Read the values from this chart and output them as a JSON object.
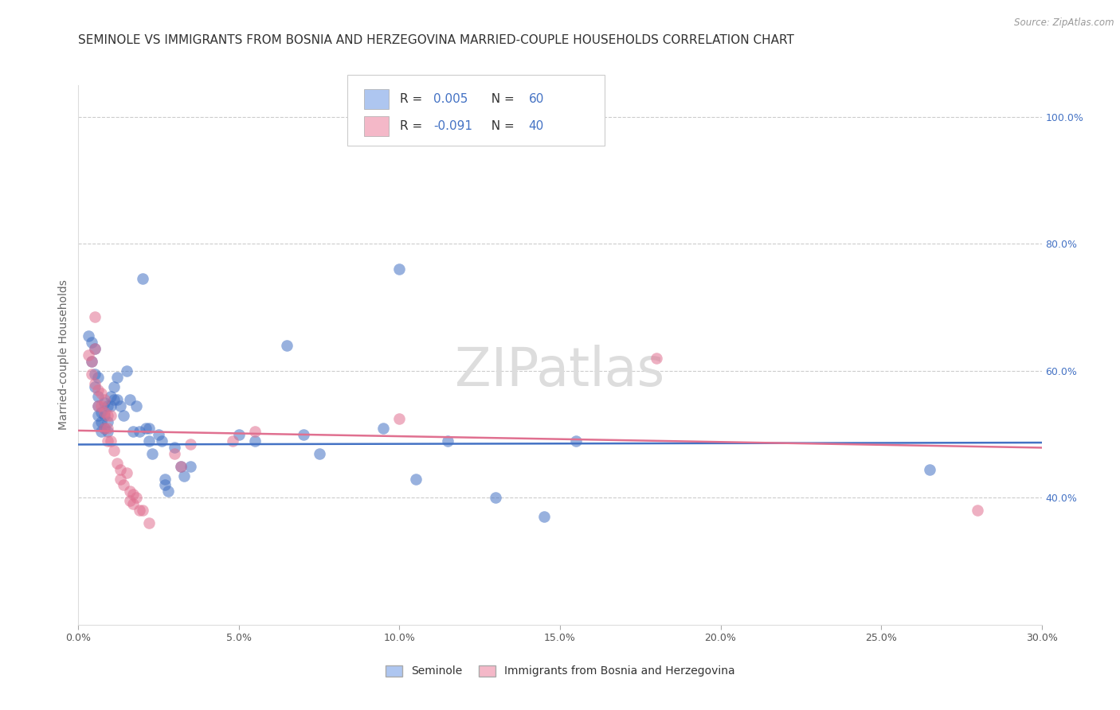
{
  "title": "SEMINOLE VS IMMIGRANTS FROM BOSNIA AND HERZEGOVINA MARRIED-COUPLE HOUSEHOLDS CORRELATION CHART",
  "source": "Source: ZipAtlas.com",
  "ylabel": "Married-couple Households",
  "xlim": [
    0.0,
    0.3
  ],
  "ylim": [
    0.2,
    1.05
  ],
  "xtick_labels": [
    "0.0%",
    "5.0%",
    "10.0%",
    "15.0%",
    "20.0%",
    "25.0%",
    "30.0%"
  ],
  "xtick_values": [
    0.0,
    0.05,
    0.1,
    0.15,
    0.2,
    0.25,
    0.3
  ],
  "right_ytick_values": [
    0.4,
    0.6,
    0.8,
    1.0
  ],
  "right_ytick_labels": [
    "40.0%",
    "60.0%",
    "80.0%",
    "100.0%"
  ],
  "legend_labels": [
    "Seminole",
    "Immigrants from Bosnia and Herzegovina"
  ],
  "legend_box1_color": "#aec6f0",
  "legend_box2_color": "#f4b8c8",
  "r_blue": 0.005,
  "n_blue": 60,
  "r_pink": -0.091,
  "n_pink": 40,
  "r_color": "#4472c4",
  "watermark": "ZIPatlas",
  "blue_dots": [
    [
      0.003,
      0.655
    ],
    [
      0.004,
      0.645
    ],
    [
      0.004,
      0.615
    ],
    [
      0.005,
      0.635
    ],
    [
      0.005,
      0.595
    ],
    [
      0.005,
      0.575
    ],
    [
      0.006,
      0.59
    ],
    [
      0.006,
      0.56
    ],
    [
      0.006,
      0.545
    ],
    [
      0.006,
      0.53
    ],
    [
      0.006,
      0.515
    ],
    [
      0.007,
      0.535
    ],
    [
      0.007,
      0.52
    ],
    [
      0.007,
      0.505
    ],
    [
      0.008,
      0.55
    ],
    [
      0.008,
      0.53
    ],
    [
      0.008,
      0.51
    ],
    [
      0.009,
      0.545
    ],
    [
      0.009,
      0.52
    ],
    [
      0.009,
      0.505
    ],
    [
      0.01,
      0.56
    ],
    [
      0.01,
      0.545
    ],
    [
      0.011,
      0.575
    ],
    [
      0.011,
      0.555
    ],
    [
      0.012,
      0.59
    ],
    [
      0.012,
      0.555
    ],
    [
      0.013,
      0.545
    ],
    [
      0.014,
      0.53
    ],
    [
      0.015,
      0.6
    ],
    [
      0.016,
      0.555
    ],
    [
      0.017,
      0.505
    ],
    [
      0.018,
      0.545
    ],
    [
      0.019,
      0.505
    ],
    [
      0.02,
      0.745
    ],
    [
      0.021,
      0.51
    ],
    [
      0.022,
      0.51
    ],
    [
      0.022,
      0.49
    ],
    [
      0.023,
      0.47
    ],
    [
      0.025,
      0.5
    ],
    [
      0.026,
      0.49
    ],
    [
      0.027,
      0.43
    ],
    [
      0.027,
      0.42
    ],
    [
      0.028,
      0.41
    ],
    [
      0.03,
      0.48
    ],
    [
      0.032,
      0.45
    ],
    [
      0.033,
      0.435
    ],
    [
      0.035,
      0.45
    ],
    [
      0.05,
      0.5
    ],
    [
      0.055,
      0.49
    ],
    [
      0.065,
      0.64
    ],
    [
      0.07,
      0.5
    ],
    [
      0.075,
      0.47
    ],
    [
      0.095,
      0.51
    ],
    [
      0.1,
      0.76
    ],
    [
      0.105,
      0.43
    ],
    [
      0.115,
      0.49
    ],
    [
      0.13,
      0.4
    ],
    [
      0.145,
      0.37
    ],
    [
      0.155,
      0.49
    ],
    [
      0.265,
      0.445
    ]
  ],
  "pink_dots": [
    [
      0.003,
      0.625
    ],
    [
      0.004,
      0.615
    ],
    [
      0.004,
      0.595
    ],
    [
      0.005,
      0.685
    ],
    [
      0.005,
      0.635
    ],
    [
      0.005,
      0.58
    ],
    [
      0.006,
      0.57
    ],
    [
      0.006,
      0.545
    ],
    [
      0.007,
      0.565
    ],
    [
      0.007,
      0.545
    ],
    [
      0.008,
      0.555
    ],
    [
      0.008,
      0.535
    ],
    [
      0.008,
      0.51
    ],
    [
      0.009,
      0.53
    ],
    [
      0.009,
      0.51
    ],
    [
      0.009,
      0.49
    ],
    [
      0.01,
      0.53
    ],
    [
      0.01,
      0.49
    ],
    [
      0.011,
      0.475
    ],
    [
      0.012,
      0.455
    ],
    [
      0.013,
      0.445
    ],
    [
      0.013,
      0.43
    ],
    [
      0.014,
      0.42
    ],
    [
      0.015,
      0.44
    ],
    [
      0.016,
      0.41
    ],
    [
      0.016,
      0.395
    ],
    [
      0.017,
      0.405
    ],
    [
      0.017,
      0.39
    ],
    [
      0.018,
      0.4
    ],
    [
      0.019,
      0.38
    ],
    [
      0.02,
      0.38
    ],
    [
      0.022,
      0.36
    ],
    [
      0.03,
      0.47
    ],
    [
      0.032,
      0.45
    ],
    [
      0.035,
      0.485
    ],
    [
      0.048,
      0.49
    ],
    [
      0.055,
      0.505
    ],
    [
      0.1,
      0.525
    ],
    [
      0.18,
      0.62
    ],
    [
      0.28,
      0.38
    ]
  ],
  "blue_line_x": [
    0.0,
    0.3
  ],
  "blue_line_y": [
    0.484,
    0.487
  ],
  "pink_line_x": [
    0.0,
    0.3
  ],
  "pink_line_y": [
    0.506,
    0.479
  ],
  "blue_color": "#4472c4",
  "pink_color": "#e07090",
  "dot_alpha": 0.55,
  "dot_size": 110,
  "grid_color": "#cccccc",
  "background_color": "#ffffff",
  "title_fontsize": 11,
  "axis_label_fontsize": 10,
  "tick_fontsize": 9
}
